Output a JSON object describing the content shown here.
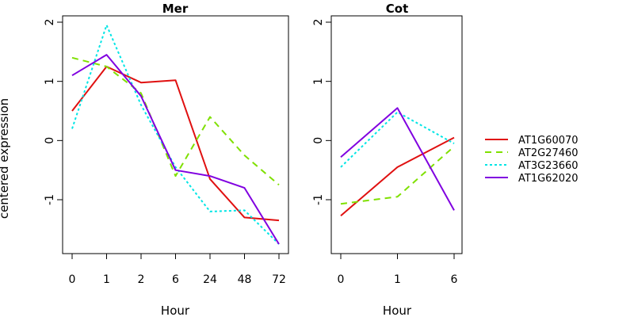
{
  "figure": {
    "ylabel": "centered expression",
    "colors": {
      "AT1G60070": "#e01010",
      "AT2G27460": "#7fe000",
      "AT3G23660": "#00e5e5",
      "AT1G62020": "#8000e0"
    },
    "legend": {
      "position": "right",
      "entries": [
        {
          "label": "AT1G60070",
          "color": "#e01010",
          "dash": "solid"
        },
        {
          "label": "AT2G27460",
          "color": "#7fe000",
          "dash": "dashed"
        },
        {
          "label": "AT3G23660",
          "color": "#00e5e5",
          "dash": "dotted"
        },
        {
          "label": "AT1G62020",
          "color": "#8000e0",
          "dash": "solid"
        }
      ]
    }
  },
  "chart_data": [
    {
      "type": "line",
      "title": "Mer",
      "xlabel": "Hour",
      "ylabel": "centered expression",
      "categories": [
        "0",
        "1",
        "2",
        "6",
        "24",
        "48",
        "72"
      ],
      "yticks": [
        2,
        1,
        0,
        -1
      ],
      "ylim": [
        -1.9,
        2.1
      ],
      "grid": false,
      "series": [
        {
          "name": "AT1G60070",
          "color": "#e01010",
          "dash": "solid",
          "values": [
            0.5,
            1.25,
            0.98,
            1.02,
            -0.65,
            -1.3,
            -1.35
          ]
        },
        {
          "name": "AT2G27460",
          "color": "#7fe000",
          "dash": "dashed",
          "values": [
            1.4,
            1.25,
            0.8,
            -0.6,
            0.4,
            -0.25,
            -0.75
          ]
        },
        {
          "name": "AT3G23660",
          "color": "#00e5e5",
          "dash": "dotted",
          "values": [
            0.2,
            1.95,
            0.6,
            -0.45,
            -1.2,
            -1.18,
            -1.75
          ]
        },
        {
          "name": "AT1G62020",
          "color": "#8000e0",
          "dash": "solid",
          "values": [
            1.1,
            1.45,
            0.75,
            -0.5,
            -0.6,
            -0.8,
            -1.75
          ]
        }
      ]
    },
    {
      "type": "line",
      "title": "Cot",
      "xlabel": "Hour",
      "ylabel": "",
      "categories": [
        "0",
        "1",
        "6"
      ],
      "yticks": [
        2,
        1,
        0,
        -1
      ],
      "ylim": [
        -1.9,
        2.1
      ],
      "grid": false,
      "series": [
        {
          "name": "AT1G60070",
          "color": "#e01010",
          "dash": "solid",
          "values": [
            -1.27,
            -0.45,
            0.05
          ]
        },
        {
          "name": "AT2G27460",
          "color": "#7fe000",
          "dash": "dashed",
          "values": [
            -1.07,
            -0.95,
            -0.1
          ]
        },
        {
          "name": "AT3G23660",
          "color": "#00e5e5",
          "dash": "dotted",
          "values": [
            -0.45,
            0.48,
            -0.05
          ]
        },
        {
          "name": "AT1G62020",
          "color": "#8000e0",
          "dash": "solid",
          "values": [
            -0.28,
            0.55,
            -1.18
          ]
        }
      ]
    }
  ]
}
